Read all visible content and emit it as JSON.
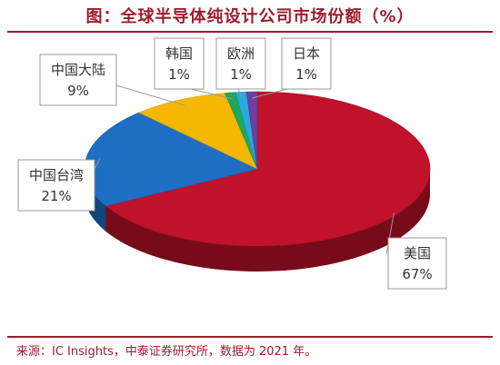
{
  "title": "图：全球半导体纯设计公司市场份额（%）",
  "source": "来源：IC Insights，中泰证券研究所，数据为 2021 年。",
  "chart_data": {
    "type": "pie",
    "style": "3d",
    "unit": "%",
    "slices": [
      {
        "name": "美国",
        "value": 67,
        "label": "67%",
        "color": "#c0122a"
      },
      {
        "name": "中国台湾",
        "value": 21,
        "label": "21%",
        "color": "#1e6fc4"
      },
      {
        "name": "中国大陆",
        "value": 9,
        "label": "9%",
        "color": "#f5b800"
      },
      {
        "name": "韩国",
        "value": 1,
        "label": "1%",
        "color": "#1fa85a"
      },
      {
        "name": "欧洲",
        "value": 1,
        "label": "1%",
        "color": "#28a9e0"
      },
      {
        "name": "日本",
        "value": 1,
        "label": "1%",
        "color": "#6e3fa0"
      }
    ]
  }
}
